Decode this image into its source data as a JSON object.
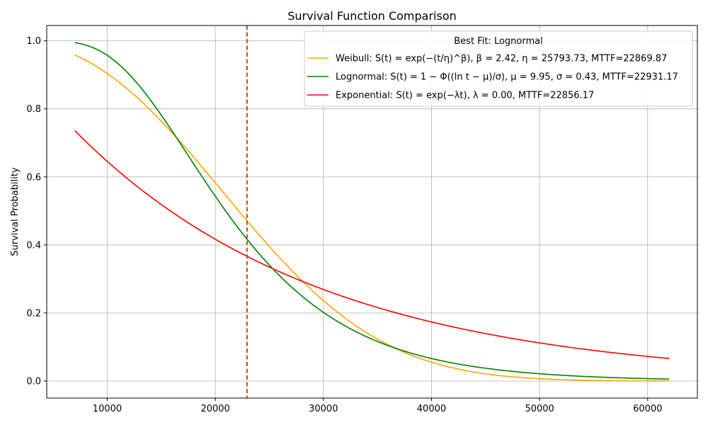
{
  "chart_data": {
    "type": "line",
    "title": "Survival Function Comparison",
    "xlabel": "",
    "ylabel": "Survival Probability",
    "xlim": [
      4400,
      64600
    ],
    "ylim": [
      -0.05,
      1.045
    ],
    "x_ticks": [
      10000,
      20000,
      30000,
      40000,
      50000,
      60000
    ],
    "y_ticks": [
      0.0,
      0.2,
      0.4,
      0.6,
      0.8,
      1.0
    ],
    "x_tick_labels": [
      "10000",
      "20000",
      "30000",
      "40000",
      "50000",
      "60000"
    ],
    "y_tick_labels": [
      "0.0",
      "0.2",
      "0.4",
      "0.6",
      "0.8",
      "1.0"
    ],
    "grid": true,
    "legend_position": "top-right",
    "legend_title": "Best Fit: Lognormal",
    "x_range": [
      7000,
      62000
    ],
    "series": [
      {
        "name": "Weibull: S(t) = exp(−(t/η)^β), β = 2.42, η = 25793.73, MTTF=22869.87",
        "color": "#ffa500",
        "model": "weibull",
        "params": {
          "beta": 2.42,
          "eta": 25793.73
        }
      },
      {
        "name": "Lognormal: S(t) = 1 − Φ((ln t − μ)/σ), μ = 9.95, σ = 0.43, MTTF=22931.17",
        "color": "#008000",
        "model": "lognormal",
        "params": {
          "mu": 9.95,
          "sigma": 0.43
        }
      },
      {
        "name": "Exponential: S(t) = exp(−λt), λ = 0.00, MTTF=22856.17",
        "color": "#ff0000",
        "model": "exponential",
        "params": {
          "lambda": 4.3752e-05
        }
      }
    ],
    "annotations": [
      {
        "type": "vline",
        "x": 22931.17,
        "color": "#cc4c02",
        "style": "dashed"
      }
    ]
  }
}
